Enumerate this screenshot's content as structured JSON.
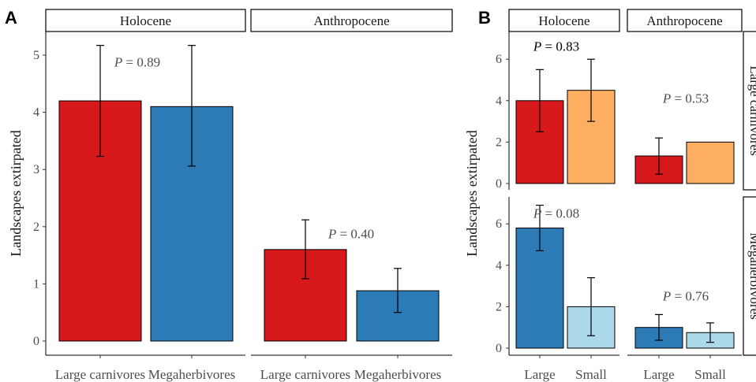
{
  "chart_data": [
    {
      "panel": "A",
      "type": "bar",
      "ylabel": "Landscapes extirpated",
      "ylim": [
        0,
        5.5
      ],
      "yticks": [
        0,
        1,
        2,
        3,
        4,
        5
      ],
      "facets": [
        {
          "label": "Holocene",
          "p_value": "0.89",
          "categories": [
            "Large carnivores",
            "Megaherbivores"
          ],
          "values": [
            4.2,
            4.1
          ],
          "errors": [
            [
              3.23,
              5.17
            ],
            [
              3.06,
              5.17
            ]
          ],
          "colors": [
            "#d7191c",
            "#2c7bb6"
          ]
        },
        {
          "label": "Anthropocene",
          "p_value": "0.40",
          "categories": [
            "Large carnivores",
            "Megaherbivores"
          ],
          "values": [
            1.6,
            0.88
          ],
          "errors": [
            [
              1.09,
              2.12
            ],
            [
              0.5,
              1.27
            ]
          ],
          "colors": [
            "#d7191c",
            "#2c7bb6"
          ]
        }
      ]
    },
    {
      "panel": "B",
      "type": "bar",
      "ylabel": "Landscapes extirpated",
      "yticks": [
        0,
        2,
        4,
        6
      ],
      "facet_cols": [
        "Holocene",
        "Anthropocene"
      ],
      "facet_rows": [
        "Large carnivores",
        "Megaherbivores"
      ],
      "categories": [
        "Large",
        "Small"
      ],
      "cells": [
        {
          "row": "Large carnivores",
          "col": "Holocene",
          "values": [
            4.0,
            4.5
          ],
          "errors": [
            [
              2.5,
              5.5
            ],
            [
              3.0,
              6.0
            ]
          ],
          "colors": [
            "#d7191c",
            "#fdae61"
          ],
          "p_value": "0.83"
        },
        {
          "row": "Large carnivores",
          "col": "Anthropocene",
          "values": [
            1.33,
            2.0
          ],
          "errors": [
            [
              0.45,
              2.2
            ],
            null
          ],
          "colors": [
            "#d7191c",
            "#fdae61"
          ],
          "p_value": "0.53"
        },
        {
          "row": "Megaherbivores",
          "col": "Holocene",
          "values": [
            5.8,
            2.0
          ],
          "errors": [
            [
              4.7,
              6.9
            ],
            [
              0.6,
              3.4
            ]
          ],
          "colors": [
            "#2c7bb6",
            "#abd9e9"
          ],
          "p_value": "0.08"
        },
        {
          "row": "Megaherbivores",
          "col": "Anthropocene",
          "values": [
            1.0,
            0.75
          ],
          "errors": [
            [
              0.38,
              1.62
            ],
            [
              0.28,
              1.22
            ]
          ],
          "colors": [
            "#2c7bb6",
            "#abd9e9"
          ],
          "p_value": "0.76"
        }
      ]
    }
  ]
}
